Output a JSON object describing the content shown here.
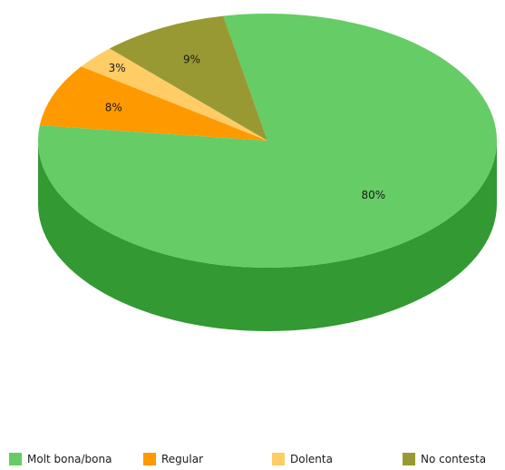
{
  "chart_data": {
    "type": "pie",
    "three_d": true,
    "title": "",
    "legend_position": "bottom",
    "slices": [
      {
        "label": "Molt bona/bona",
        "value": 80,
        "display": "80%",
        "color": "#66cc66",
        "side_color": "#339933"
      },
      {
        "label": "Regular",
        "value": 8,
        "display": "8%",
        "color": "#ff9900",
        "side_color": "#cc7a00"
      },
      {
        "label": "Dolenta",
        "value": 3,
        "display": "3%",
        "color": "#ffcc66",
        "side_color": "#cca352"
      },
      {
        "label": "No contesta",
        "value": 9,
        "display": "9%",
        "color": "#999933",
        "side_color": "#7a7a29"
      }
    ]
  }
}
